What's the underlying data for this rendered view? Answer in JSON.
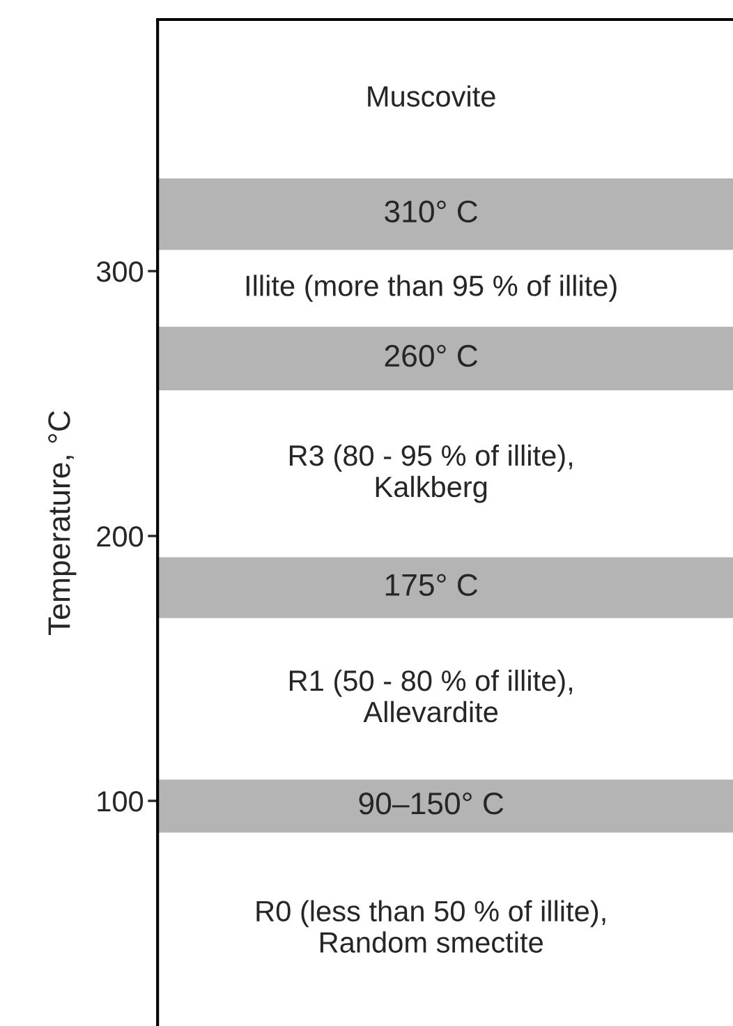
{
  "chart_data": {
    "type": "bar",
    "ylabel": "Temperature, °C",
    "ylim": [
      15,
      395
    ],
    "yticks": [
      100,
      200,
      300
    ],
    "tick_labels": "y",
    "categories": [
      null
    ],
    "bands": [
      {
        "axis": "y",
        "from": 308,
        "to": 335,
        "label": "310° C",
        "color": "#b4b4b4"
      },
      {
        "axis": "y",
        "from": 255,
        "to": 279,
        "label": "260° C",
        "color": "#b4b4b4"
      },
      {
        "axis": "y",
        "from": 169,
        "to": 192,
        "label": "175° C",
        "color": "#b4b4b4"
      },
      {
        "axis": "y",
        "from": 88,
        "to": 108,
        "label": "90–150° C",
        "color": "#b4b4b4"
      }
    ],
    "annotations": [
      "Muscovite",
      "Illite (more than 95 % of illite)",
      "R3 (80 - 95 % of illite),\nKalkberg",
      "R1 (50 - 80 % of illite),\nAllevardite",
      "R0 (less than 50 % of illite),\nRandom smectite"
    ]
  }
}
